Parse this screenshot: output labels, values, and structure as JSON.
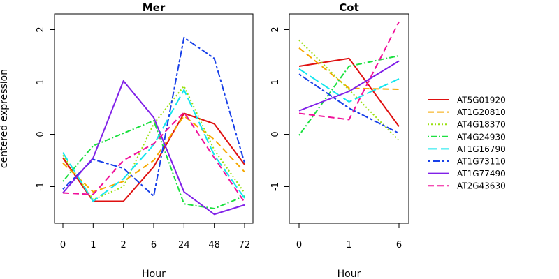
{
  "chart_data": [
    {
      "type": "line",
      "title": "Mer",
      "xlabel": "Hour",
      "ylabel": "centered expression",
      "categories": [
        "0",
        "1",
        "2",
        "6",
        "24",
        "48",
        "72"
      ],
      "ylim": [
        -1.7,
        2.3
      ],
      "yticks": [
        "-1",
        "0",
        "1",
        "2"
      ],
      "series": [
        {
          "name": "AT5G01920",
          "values": [
            -0.45,
            -1.28,
            -1.28,
            -0.62,
            0.4,
            0.2,
            -0.58
          ]
        },
        {
          "name": "AT1G20810",
          "values": [
            -0.55,
            -1.1,
            -0.9,
            -0.5,
            0.35,
            -0.1,
            -0.72
          ]
        },
        {
          "name": "AT4G18370",
          "values": [
            -0.4,
            -1.25,
            -1.0,
            0.2,
            0.92,
            -0.3,
            -1.12
          ]
        },
        {
          "name": "AT4G24930",
          "values": [
            -0.9,
            -0.22,
            0.02,
            0.26,
            -1.33,
            -1.42,
            -1.18
          ]
        },
        {
          "name": "AT1G16790",
          "values": [
            -0.35,
            -1.28,
            -0.85,
            -0.2,
            0.85,
            -0.4,
            -1.22
          ]
        },
        {
          "name": "AT1G73110",
          "values": [
            -1.05,
            -0.48,
            -0.65,
            -1.18,
            1.85,
            1.45,
            -0.55
          ]
        },
        {
          "name": "AT1G77490",
          "values": [
            -1.12,
            -0.45,
            1.02,
            0.32,
            -1.1,
            -1.53,
            -1.35
          ]
        },
        {
          "name": "AT2G43630",
          "values": [
            -1.12,
            -1.15,
            -0.5,
            -0.18,
            0.42,
            -0.45,
            -1.3
          ]
        }
      ]
    },
    {
      "type": "line",
      "title": "Cot",
      "xlabel": "Hour",
      "ylabel": "",
      "categories": [
        "0",
        "1",
        "6"
      ],
      "ylim": [
        -1.7,
        2.3
      ],
      "yticks": [
        "-1",
        "0",
        "1",
        "2"
      ],
      "series": [
        {
          "name": "AT5G01920",
          "values": [
            1.3,
            1.45,
            0.15
          ]
        },
        {
          "name": "AT1G20810",
          "values": [
            1.65,
            0.88,
            0.86
          ]
        },
        {
          "name": "AT4G18370",
          "values": [
            1.8,
            0.85,
            -0.12
          ]
        },
        {
          "name": "AT4G24930",
          "values": [
            -0.02,
            1.3,
            1.5
          ]
        },
        {
          "name": "AT1G16790",
          "values": [
            1.25,
            0.62,
            1.06
          ]
        },
        {
          "name": "AT1G73110",
          "values": [
            1.15,
            0.5,
            0.02
          ]
        },
        {
          "name": "AT1G77490",
          "values": [
            0.45,
            0.82,
            1.4
          ]
        },
        {
          "name": "AT2G43630",
          "values": [
            0.4,
            0.28,
            2.15
          ]
        }
      ]
    }
  ],
  "legend": {
    "placement": "right",
    "entries": [
      {
        "name": "AT5G01920",
        "color": "#DF1010",
        "dash": "solid"
      },
      {
        "name": "AT1G20810",
        "color": "#F5A800",
        "dash": "dashed"
      },
      {
        "name": "AT4G18370",
        "color": "#99E010",
        "dash": "dotted"
      },
      {
        "name": "AT4G24930",
        "color": "#1CE040",
        "dash": "dotdash"
      },
      {
        "name": "AT1G16790",
        "color": "#12E6EE",
        "dash": "longdash"
      },
      {
        "name": "AT1G73110",
        "color": "#1840E8",
        "dash": "twodash"
      },
      {
        "name": "AT1G77490",
        "color": "#8020E8",
        "dash": "solid"
      },
      {
        "name": "AT2G43630",
        "color": "#F0109A",
        "dash": "dashed"
      }
    ]
  }
}
